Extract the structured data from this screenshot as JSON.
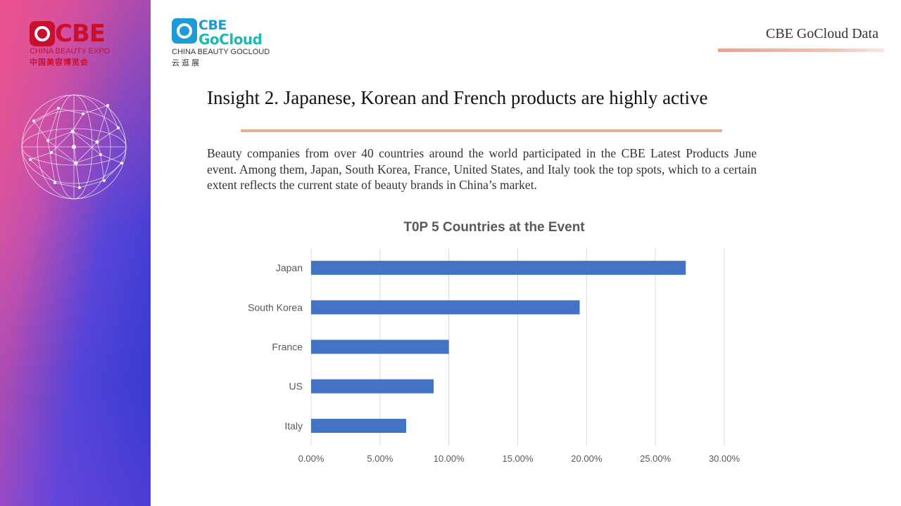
{
  "brand": {
    "cbe_word": "CBE",
    "cbe_sub_en": "CHINA BEAUTY EXPO",
    "cbe_sub_cn": "中国美容博览会",
    "gocloud_word1": "CBE",
    "gocloud_word2": "GoCloud",
    "gocloud_sub_en": "CHINA BEAUTY GOCLOUD",
    "gocloud_sub_cn": "云逛展"
  },
  "header": {
    "title": "CBE GoCloud Data",
    "accent_color": "#e8a48a"
  },
  "slide": {
    "title": "Insight 2. Japanese, Korean and French products are highly active",
    "description": "Beauty companies from over 40 countries around the world participated in the CBE Latest Products June event. Among them, Japan, South Korea, France, United States, and Italy took the top spots, which to a certain extent reflects the current state of beauty brands in China’s market."
  },
  "chart_data": {
    "type": "bar",
    "orientation": "horizontal",
    "title": "T0P 5 Countries at the Event",
    "categories": [
      "Japan",
      "South Korea",
      "France",
      "US",
      "Italy"
    ],
    "values": [
      0.272,
      0.195,
      0.1,
      0.089,
      0.069
    ],
    "xlim": [
      0,
      0.3
    ],
    "xticks": [
      "0.00%",
      "5.00%",
      "10.00%",
      "15.00%",
      "20.00%",
      "25.00%",
      "30.00%"
    ],
    "xlabel": "",
    "ylabel": "",
    "grid": true,
    "legend": false,
    "bar_color": "#4472c4"
  }
}
